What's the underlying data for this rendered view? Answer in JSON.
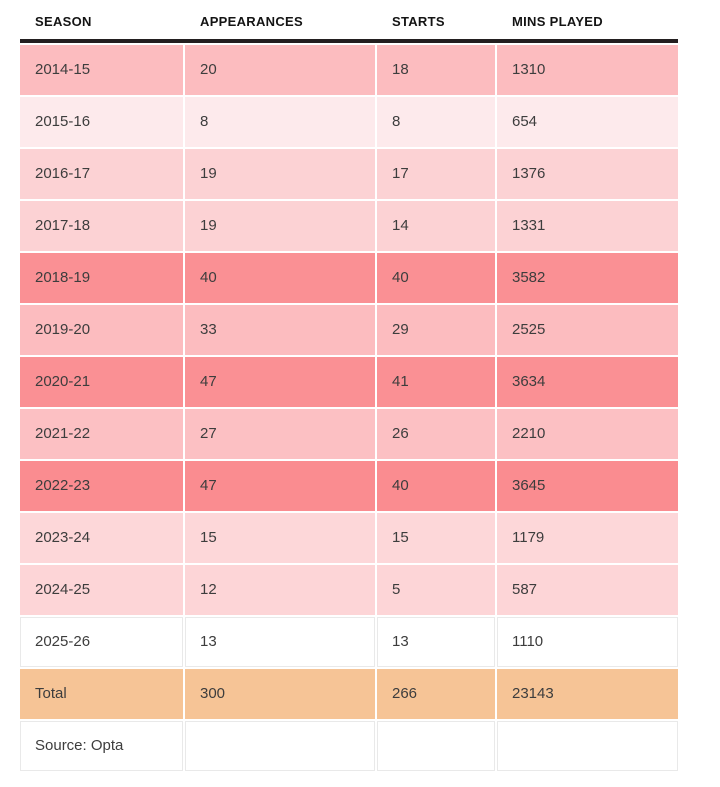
{
  "chart_data": {
    "type": "table",
    "columns": [
      "SEASON",
      "APPEARANCES",
      "STARTS",
      "MINS PLAYED"
    ],
    "rows": [
      [
        "2014-15",
        20,
        18,
        1310
      ],
      [
        "2015-16",
        8,
        8,
        654
      ],
      [
        "2016-17",
        19,
        17,
        1376
      ],
      [
        "2017-18",
        19,
        14,
        1331
      ],
      [
        "2018-19",
        40,
        40,
        3582
      ],
      [
        "2019-20",
        33,
        29,
        2525
      ],
      [
        "2020-21",
        47,
        41,
        3634
      ],
      [
        "2021-22",
        27,
        26,
        2210
      ],
      [
        "2022-23",
        47,
        40,
        3645
      ],
      [
        "2023-24",
        15,
        15,
        1179
      ],
      [
        "2024-25",
        12,
        5,
        587
      ],
      [
        "2025-26",
        13,
        13,
        1110
      ]
    ],
    "total_row": [
      "Total",
      300,
      266,
      23143
    ],
    "source_note": "Source: Opta"
  },
  "style": {
    "row_backgrounds": [
      "#fcbcbf",
      "#fdeaec",
      "#fcd2d4",
      "#fcd2d4",
      "#fa9094",
      "#fcbcbf",
      "#fa9094",
      "#fcc0c3",
      "#fa8c90",
      "#fdd7d9",
      "#fdd5d7",
      "#ffffff"
    ],
    "total_background": "#f6c496",
    "source_background": "#ffffff",
    "header_border_color": "#231f20",
    "header_text_color": "#141414",
    "body_text_color": "#3d3d3d",
    "white_cell_border": "#e9e9e9"
  }
}
